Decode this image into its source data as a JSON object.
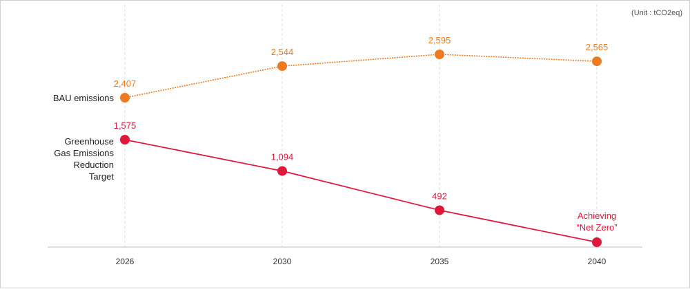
{
  "chart_data": {
    "type": "line",
    "unit_note": "(Unit : tCO2eq)",
    "x": [
      "2026",
      "2030",
      "2035",
      "2040"
    ],
    "ylim": [
      0,
      2700
    ],
    "grid": "vertical dashed",
    "series": [
      {
        "name": "BAU emissions",
        "label_lines": [
          "BAU emissions"
        ],
        "color": "#ee7a22",
        "line_style": "dotted",
        "values": [
          2407,
          2544,
          2595,
          2565
        ],
        "labels": [
          "2,407",
          "2,544",
          "2,595",
          "2,565"
        ]
      },
      {
        "name": "Greenhouse Gas Emissions Reduction Target",
        "label_lines": [
          "Greenhouse",
          "Gas Emissions",
          "Reduction",
          "Target"
        ],
        "color": "#e0173a",
        "line_style": "solid",
        "values": [
          1575,
          1094,
          492,
          0
        ],
        "labels": [
          "1,575",
          "1,094",
          "492",
          ""
        ]
      }
    ],
    "annotation": {
      "lines": [
        "Achieving",
        "“Net Zero”"
      ],
      "x": "2040",
      "color": "#e0173a"
    }
  }
}
